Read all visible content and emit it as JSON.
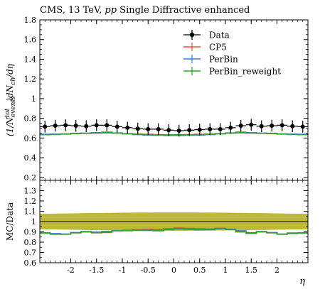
{
  "figure": {
    "title": "CMS, 13 TeV, pp Single Diffractive enhanced",
    "title_parts": [
      "CMS, 13 TeV, ",
      "pp",
      " Single Diffractive enhanced"
    ]
  },
  "colors": {
    "data": "#000000",
    "cp5": "#e8542a",
    "perbin": "#3a7fd4",
    "perbin_reweight": "#2aa52a",
    "band": "#b5b126"
  },
  "chart_data": [
    {
      "type": "line",
      "panel": "main",
      "xlabel": "η",
      "ylabel": "(1/N_events^tot) dN_ch/dη",
      "ylabel_parts": {
        "pre": "(1/",
        "N": "N",
        "sub": "events",
        "sup": "tot",
        "post": ")dN",
        "ch": "ch",
        "end": "/dη"
      },
      "xlim": [
        -2.6,
        2.6
      ],
      "ylim": [
        0.17,
        1.8
      ],
      "yticks": [
        0.2,
        0.4,
        0.6,
        0.8,
        1.0,
        1.2,
        1.4,
        1.6,
        1.8
      ],
      "ytick_labels": [
        "0.2",
        "0.4",
        "0.6",
        "0.8",
        "1",
        "1.2",
        "1.4",
        "1.6",
        "1.8"
      ],
      "legend_position": "top-right",
      "bin_edges": [
        -2.6,
        -2.4,
        -2.2,
        -2.0,
        -1.8,
        -1.6,
        -1.4,
        -1.2,
        -1.0,
        -0.8,
        -0.6,
        -0.4,
        -0.2,
        0.0,
        0.2,
        0.4,
        0.6,
        0.8,
        1.0,
        1.2,
        1.4,
        1.6,
        1.8,
        2.0,
        2.2,
        2.4,
        2.6
      ],
      "series": [
        {
          "name": "Data",
          "key": "data",
          "x": [
            -2.5,
            -2.3,
            -2.1,
            -1.9,
            -1.7,
            -1.5,
            -1.3,
            -1.1,
            -0.9,
            -0.7,
            -0.5,
            -0.3,
            -0.1,
            0.1,
            0.3,
            0.5,
            0.7,
            0.9,
            1.1,
            1.3,
            1.5,
            1.7,
            1.9,
            2.1,
            2.3,
            2.5
          ],
          "values": [
            0.715,
            0.725,
            0.73,
            0.725,
            0.72,
            0.73,
            0.73,
            0.715,
            0.705,
            0.695,
            0.69,
            0.69,
            0.68,
            0.675,
            0.68,
            0.685,
            0.69,
            0.69,
            0.705,
            0.725,
            0.735,
            0.72,
            0.725,
            0.73,
            0.72,
            0.715
          ],
          "errors": [
            0.06,
            0.06,
            0.06,
            0.06,
            0.06,
            0.06,
            0.06,
            0.06,
            0.06,
            0.06,
            0.06,
            0.06,
            0.06,
            0.06,
            0.06,
            0.06,
            0.06,
            0.06,
            0.06,
            0.06,
            0.06,
            0.06,
            0.06,
            0.06,
            0.06,
            0.06
          ]
        },
        {
          "name": "CP5",
          "key": "cp5",
          "values": [
            0.635,
            0.637,
            0.64,
            0.645,
            0.647,
            0.65,
            0.652,
            0.65,
            0.645,
            0.64,
            0.638,
            0.635,
            0.633,
            0.633,
            0.635,
            0.638,
            0.64,
            0.645,
            0.65,
            0.652,
            0.65,
            0.647,
            0.645,
            0.64,
            0.637,
            0.635
          ]
        },
        {
          "name": "PerBin",
          "key": "perbin",
          "values": [
            0.638,
            0.64,
            0.642,
            0.648,
            0.65,
            0.655,
            0.66,
            0.652,
            0.642,
            0.635,
            0.63,
            0.628,
            0.626,
            0.626,
            0.628,
            0.63,
            0.635,
            0.642,
            0.652,
            0.66,
            0.655,
            0.65,
            0.648,
            0.642,
            0.64,
            0.638
          ]
        },
        {
          "name": "PerBin_reweight",
          "key": "perbin_reweight",
          "values": [
            0.634,
            0.636,
            0.64,
            0.646,
            0.648,
            0.651,
            0.655,
            0.65,
            0.644,
            0.638,
            0.635,
            0.632,
            0.63,
            0.63,
            0.632,
            0.635,
            0.638,
            0.644,
            0.65,
            0.655,
            0.651,
            0.648,
            0.646,
            0.64,
            0.636,
            0.634
          ]
        }
      ]
    },
    {
      "type": "line",
      "panel": "ratio",
      "xlabel": "η",
      "ylabel": "MC/Data",
      "xlim": [
        -2.6,
        2.6
      ],
      "ylim": [
        0.6,
        1.4
      ],
      "yticks": [
        0.6,
        0.7,
        0.8,
        0.9,
        1.0,
        1.1,
        1.2,
        1.3
      ],
      "ytick_labels": [
        "0.6",
        "0.7",
        "0.8",
        "0.9",
        "1",
        "1.1",
        "1.2",
        "1.3"
      ],
      "xticks": [
        -2,
        -1.5,
        -1,
        -0.5,
        0,
        0.5,
        1,
        1.5,
        2
      ],
      "xtick_labels": [
        "-2",
        "-1.5",
        "-1",
        "-0.5",
        "0",
        "0.5",
        "1",
        "1.5",
        "2"
      ],
      "band": {
        "x": [
          -2.6,
          -2.2,
          -1.8,
          -1.4,
          -1.0,
          -0.6,
          -0.2,
          0.2,
          0.6,
          1.0,
          1.4,
          1.8,
          2.2,
          2.6
        ],
        "upper": [
          1.075,
          1.078,
          1.081,
          1.084,
          1.086,
          1.088,
          1.089,
          1.089,
          1.088,
          1.086,
          1.084,
          1.081,
          1.078,
          1.075
        ],
        "lower": [
          0.925,
          0.922,
          0.919,
          0.916,
          0.914,
          0.912,
          0.911,
          0.911,
          0.912,
          0.914,
          0.916,
          0.919,
          0.922,
          0.925
        ]
      },
      "series": [
        {
          "name": "CP5",
          "key": "cp5",
          "values": [
            0.888,
            0.879,
            0.877,
            0.89,
            0.899,
            0.89,
            0.893,
            0.909,
            0.915,
            0.921,
            0.925,
            0.92,
            0.931,
            0.938,
            0.934,
            0.931,
            0.927,
            0.935,
            0.922,
            0.899,
            0.884,
            0.899,
            0.89,
            0.877,
            0.885,
            0.888
          ]
        },
        {
          "name": "PerBin",
          "key": "perbin",
          "values": [
            0.892,
            0.883,
            0.879,
            0.894,
            0.903,
            0.897,
            0.904,
            0.912,
            0.911,
            0.914,
            0.913,
            0.91,
            0.921,
            0.927,
            0.924,
            0.92,
            0.92,
            0.93,
            0.925,
            0.91,
            0.891,
            0.903,
            0.894,
            0.879,
            0.889,
            0.892
          ]
        },
        {
          "name": "PerBin_reweight",
          "key": "perbin_reweight",
          "values": [
            0.887,
            0.877,
            0.877,
            0.891,
            0.9,
            0.892,
            0.897,
            0.909,
            0.913,
            0.918,
            0.92,
            0.916,
            0.926,
            0.933,
            0.929,
            0.927,
            0.925,
            0.933,
            0.922,
            0.903,
            0.886,
            0.9,
            0.891,
            0.877,
            0.883,
            0.887
          ]
        }
      ]
    }
  ]
}
